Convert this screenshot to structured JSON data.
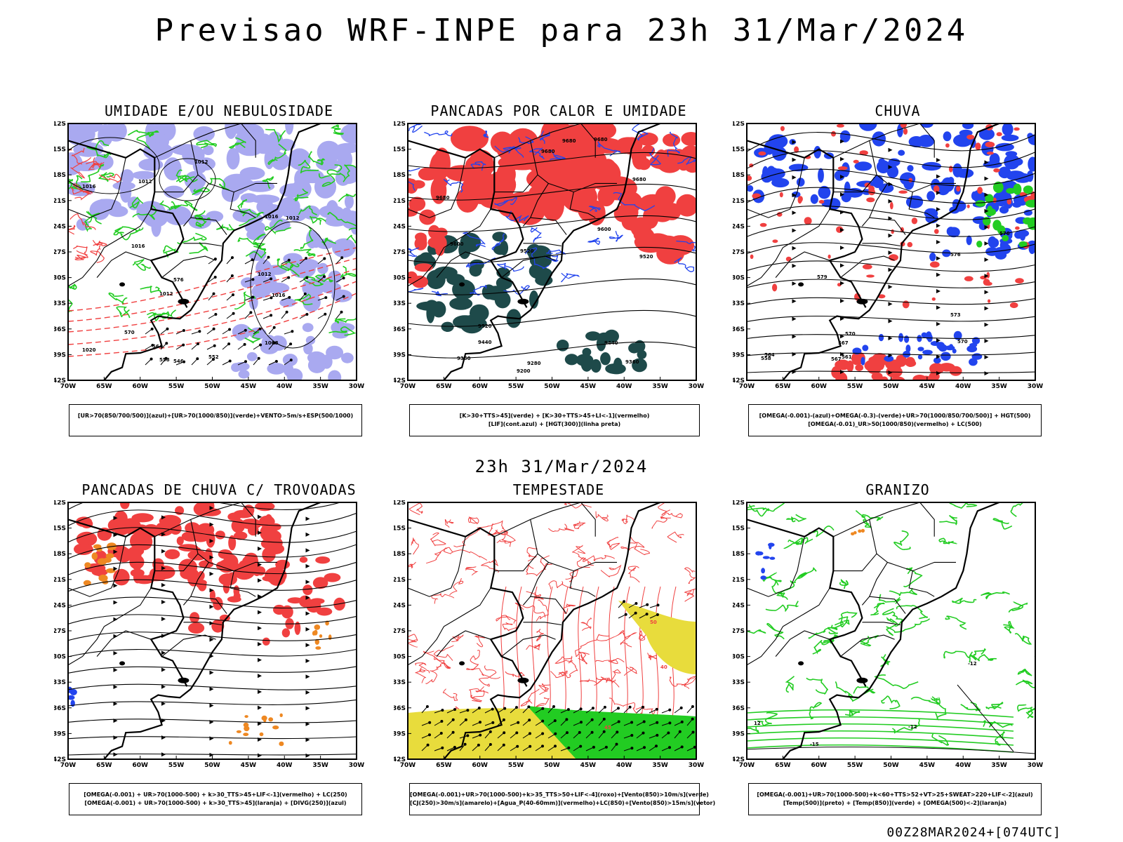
{
  "header": {
    "title": "Previsao WRF-INPE  para 23h 31/Mar/2024"
  },
  "middle": {
    "timestamp": "23h 31/Mar/2024"
  },
  "footer": {
    "run": "00Z28MAR2024+[074UTC]"
  },
  "axes": {
    "lat_labels": [
      "12S",
      "15S",
      "18S",
      "21S",
      "24S",
      "27S",
      "30S",
      "33S",
      "36S",
      "39S",
      "42S"
    ],
    "lon_labels": [
      "70W",
      "65W",
      "60W",
      "55W",
      "50W",
      "45W",
      "40W",
      "35W",
      "30W"
    ]
  },
  "colors": {
    "red": "#f04040",
    "green": "#22cc22",
    "blue": "#2244ee",
    "lavender": "#a9a9f0",
    "darkteal": "#1e4a4a",
    "orange": "#ee8822",
    "yellow": "#e8dc3c"
  },
  "panels": [
    {
      "id": "umidade",
      "title": "UMIDADE E/OU NEBULOSIDADE",
      "legend": [
        "[UR>70(850/700/500)](azul)+[UR>70(1000/850)](verde)+VENTO>5m/s+ESP(500/1000)"
      ],
      "labels": [
        "1012",
        "1012",
        "1016",
        "1016",
        "1012",
        "1012",
        "1016",
        "1012",
        "1016",
        "1008",
        "576",
        "570",
        "564",
        "558",
        "552",
        "546",
        "1020"
      ]
    },
    {
      "id": "pancadas-calor",
      "title": "PANCADAS POR CALOR E UMIDADE",
      "legend": [
        "[K>30+TTS>45](verde) + [K>30+TTS>45+LI<-1](vermelho)",
        "[LIF](cont.azul) + [HGT(300)](linha preta)"
      ],
      "labels": [
        "9680",
        "9680",
        "9680",
        "9680",
        "9680",
        "9600",
        "9520",
        "9600",
        "9520",
        "9440",
        "9440",
        "9360",
        "9360",
        "9280",
        "9200",
        "9520"
      ]
    },
    {
      "id": "chuva",
      "title": "CHUVA",
      "legend": [
        "[OMEGA(-0.001)-(azul)+OMEGA(-0.3)-(verde)+UR>70(1000/850/700/500)] + HGT(500)",
        "[OMEGA(-0.01)_UR>50(1000/850)(vermelho) + LC(500)"
      ],
      "labels": [
        "576",
        "579",
        "576",
        "573",
        "570",
        "567",
        "564",
        "561",
        "558",
        "570",
        "567"
      ]
    },
    {
      "id": "pancadas-trovoadas",
      "title": "PANCADAS DE CHUVA C/ TROVOADAS",
      "legend": [
        "[OMEGA(-0.001) + UR>70(1000-500) + k>30_TTS>45+LIF<-1](vermelho) + LC(250)",
        "[OMEGA(-0.001) + UR>70(1000-500) + k>30_TTS>45](laranja) + [DIVG(250)](azul)"
      ],
      "labels": []
    },
    {
      "id": "tempestade",
      "title": "TEMPESTADE",
      "legend": [
        "[OMEGA(-0.001)+UR>70(1000-500)+k>35_TTS>50+LIF<-4](roxo)+[Vento(850)>10m/s](verde)",
        "[CJ(250)>30m/s](amarelo)+[Agua_P(40-60mm)](vermelho)+LC(850)+[Vento(850)>15m/s](vetor)"
      ],
      "labels": [
        "50",
        "40",
        "45"
      ]
    },
    {
      "id": "granizo",
      "title": "GRANIZO",
      "legend": [
        "[OMEGA(-0.001)+UR>70(1000-500)+k<60+TTS>52+VT>25+SWEAT>220+LIF<-2](azul)",
        "[Temp(500)](preto) + [Temp(850)](verde) + [OMEGA(500)<-2](laranja)"
      ],
      "labels": [
        "-15",
        "-12",
        "-12",
        "12"
      ]
    }
  ]
}
